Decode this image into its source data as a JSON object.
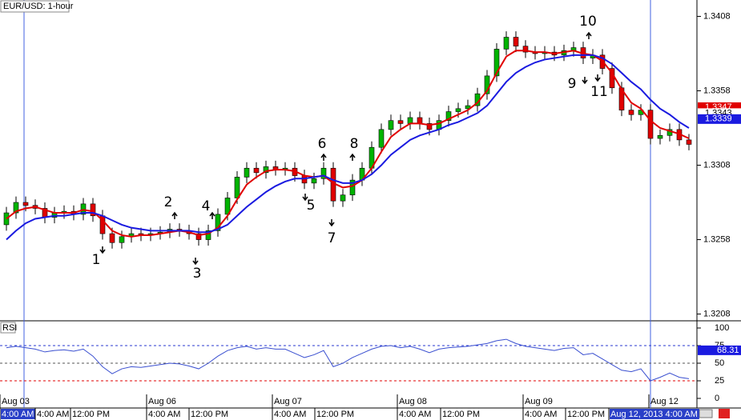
{
  "chart_data": [
    {
      "type": "candlestick",
      "title": "EUR/USD: 1-hour",
      "open": [
        1.3268,
        1.3276,
        1.3283,
        1.3281,
        1.3279,
        1.3273,
        1.3276,
        1.3277,
        1.3275,
        1.3282,
        1.3274,
        1.3262,
        1.3256,
        1.326,
        1.3262,
        1.3261,
        1.3262,
        1.3263,
        1.3265,
        1.3264,
        1.3262,
        1.3258,
        1.3264,
        1.3275,
        1.3286,
        1.33,
        1.3306,
        1.3303,
        1.3307,
        1.3305,
        1.3306,
        1.3301,
        1.3296,
        1.3299,
        1.3306,
        1.3284,
        1.3288,
        1.3298,
        1.3306,
        1.332,
        1.3332,
        1.3338,
        1.3336,
        1.334,
        1.3336,
        1.3332,
        1.3338,
        1.3344,
        1.3346,
        1.3348,
        1.3356,
        1.3368,
        1.3386,
        1.3394,
        1.3388,
        1.3384,
        1.3383,
        1.3384,
        1.3382,
        1.3385,
        1.3387,
        1.338,
        1.3382,
        1.3373,
        1.336,
        1.3345,
        1.3342,
        1.3345,
        1.3326,
        1.3328,
        1.3332,
        1.3325
      ],
      "high": [
        1.328,
        1.3287,
        1.3287,
        1.3285,
        1.3283,
        1.328,
        1.3281,
        1.3281,
        1.3286,
        1.3286,
        1.3278,
        1.3266,
        1.3264,
        1.3266,
        1.3266,
        1.3266,
        1.3267,
        1.3269,
        1.3269,
        1.3268,
        1.3266,
        1.3268,
        1.3279,
        1.329,
        1.3304,
        1.331,
        1.331,
        1.3311,
        1.3311,
        1.331,
        1.331,
        1.3305,
        1.3303,
        1.331,
        1.331,
        1.3292,
        1.3302,
        1.331,
        1.3324,
        1.3336,
        1.3342,
        1.3342,
        1.3344,
        1.3344,
        1.334,
        1.3342,
        1.3348,
        1.335,
        1.3352,
        1.336,
        1.3372,
        1.339,
        1.3398,
        1.3398,
        1.3392,
        1.3388,
        1.3388,
        1.3388,
        1.3389,
        1.3391,
        1.3391,
        1.3386,
        1.3386,
        1.3377,
        1.3364,
        1.3349,
        1.3349,
        1.3349,
        1.3332,
        1.3336,
        1.3336,
        1.3329
      ],
      "low": [
        1.3264,
        1.3272,
        1.3277,
        1.3275,
        1.3269,
        1.3269,
        1.3272,
        1.3271,
        1.3271,
        1.327,
        1.3258,
        1.3252,
        1.3252,
        1.3256,
        1.3257,
        1.3257,
        1.3258,
        1.3259,
        1.326,
        1.3258,
        1.3254,
        1.3254,
        1.326,
        1.3271,
        1.3282,
        1.3296,
        1.3299,
        1.3299,
        1.3301,
        1.3301,
        1.3297,
        1.3292,
        1.3292,
        1.3295,
        1.328,
        1.328,
        1.3284,
        1.3294,
        1.3302,
        1.3316,
        1.3328,
        1.3332,
        1.3332,
        1.3332,
        1.3328,
        1.3328,
        1.3334,
        1.334,
        1.3342,
        1.3344,
        1.3352,
        1.3364,
        1.3382,
        1.3384,
        1.338,
        1.3379,
        1.3379,
        1.3378,
        1.3378,
        1.3381,
        1.3376,
        1.3376,
        1.3369,
        1.3356,
        1.3341,
        1.3338,
        1.3338,
        1.3322,
        1.3322,
        1.3324,
        1.3321,
        1.3318
      ],
      "close": [
        1.3276,
        1.3283,
        1.3281,
        1.3279,
        1.3273,
        1.3276,
        1.3277,
        1.3275,
        1.3282,
        1.3274,
        1.3262,
        1.3256,
        1.326,
        1.3262,
        1.3261,
        1.3262,
        1.3263,
        1.3265,
        1.3264,
        1.3262,
        1.3258,
        1.3264,
        1.3275,
        1.3286,
        1.33,
        1.3306,
        1.3303,
        1.3307,
        1.3305,
        1.3306,
        1.3301,
        1.3296,
        1.3299,
        1.3306,
        1.3284,
        1.3288,
        1.3298,
        1.3306,
        1.332,
        1.3332,
        1.3338,
        1.3336,
        1.334,
        1.3336,
        1.3332,
        1.3338,
        1.3344,
        1.3346,
        1.3348,
        1.3356,
        1.3368,
        1.3386,
        1.3394,
        1.3388,
        1.3384,
        1.3383,
        1.3384,
        1.3382,
        1.3385,
        1.3387,
        1.338,
        1.3382,
        1.3373,
        1.336,
        1.3345,
        1.3342,
        1.3345,
        1.3326,
        1.3328,
        1.3332,
        1.3325,
        1.3322
      ],
      "up_color": "#00b400",
      "down_color": "#e00000",
      "series": [
        {
          "color": "#e00000",
          "values": [
            1.3272,
            1.3277,
            1.3279,
            1.328,
            1.3278,
            1.3276,
            1.3276,
            1.3276,
            1.3278,
            1.3277,
            1.3271,
            1.3264,
            1.3261,
            1.326,
            1.3261,
            1.3261,
            1.3262,
            1.3263,
            1.3264,
            1.3263,
            1.3261,
            1.3262,
            1.3266,
            1.3274,
            1.3285,
            1.3295,
            1.33,
            1.3304,
            1.3305,
            1.3305,
            1.3304,
            1.3301,
            1.33,
            1.3301,
            1.3296,
            1.3293,
            1.3294,
            1.3298,
            1.3306,
            1.3317,
            1.3327,
            1.3332,
            1.3336,
            1.3336,
            1.3335,
            1.3336,
            1.3339,
            1.3342,
            1.3345,
            1.335,
            1.3358,
            1.337,
            1.3381,
            1.3385,
            1.3385,
            1.3384,
            1.3384,
            1.3383,
            1.3384,
            1.3385,
            1.3383,
            1.3382,
            1.3378,
            1.337,
            1.3359,
            1.335,
            1.3346,
            1.3338,
            1.3333,
            1.3331,
            1.3329,
            1.3326
          ]
        },
        {
          "color": "#1a1ae0",
          "values": [
            1.3258,
            1.3264,
            1.3269,
            1.3272,
            1.3273,
            1.3274,
            1.3274,
            1.3275,
            1.3276,
            1.3276,
            1.3274,
            1.3271,
            1.3268,
            1.3266,
            1.3265,
            1.3264,
            1.3264,
            1.3264,
            1.3264,
            1.3264,
            1.3263,
            1.3263,
            1.3265,
            1.3268,
            1.3274,
            1.328,
            1.3285,
            1.329,
            1.3294,
            1.3297,
            1.3299,
            1.3299,
            1.33,
            1.3301,
            1.3298,
            1.3296,
            1.3296,
            1.3298,
            1.3302,
            1.3308,
            1.3315,
            1.332,
            1.3325,
            1.3328,
            1.333,
            1.3332,
            1.3335,
            1.3337,
            1.334,
            1.3343,
            1.3348,
            1.3356,
            1.3364,
            1.337,
            1.3374,
            1.3377,
            1.3379,
            1.338,
            1.3381,
            1.3382,
            1.3382,
            1.3382,
            1.338,
            1.3376,
            1.337,
            1.3364,
            1.3359,
            1.3352,
            1.3346,
            1.3342,
            1.3337,
            1.3333
          ]
        }
      ],
      "ylim": [
        1.3204,
        1.3419
      ],
      "yticks": [
        1.3408,
        1.3358,
        1.3308,
        1.3258,
        1.3208
      ],
      "price_tags": [
        {
          "value": 1.3347,
          "color": "#e00000"
        },
        {
          "value": 1.3343,
          "color": "#ffffff"
        },
        {
          "value": 1.3339,
          "color": "#1a1ae0"
        }
      ],
      "annotations": [
        "1",
        "2",
        "3",
        "4",
        "5",
        "6",
        "7",
        "8",
        "9",
        "10",
        "11"
      ]
    },
    {
      "type": "line",
      "title": "RSI",
      "series": [
        {
          "color": "#3a4fd0",
          "values": [
            72,
            74,
            72,
            70,
            66,
            68,
            69,
            67,
            70,
            60,
            45,
            35,
            42,
            45,
            44,
            46,
            48,
            50,
            49,
            46,
            42,
            50,
            60,
            68,
            72,
            74,
            70,
            72,
            70,
            70,
            64,
            58,
            62,
            68,
            45,
            50,
            58,
            64,
            70,
            74,
            75,
            72,
            74,
            70,
            65,
            70,
            72,
            73,
            74,
            76,
            78,
            82,
            84,
            78,
            74,
            72,
            70,
            68,
            71,
            72,
            62,
            64,
            56,
            48,
            40,
            38,
            42,
            25,
            30,
            36,
            30,
            28
          ]
        }
      ],
      "ylim": [
        0,
        100
      ],
      "yticks": [
        100,
        75,
        50,
        25,
        0
      ],
      "hlines": [
        75,
        50,
        25
      ],
      "hline_colors": [
        "#2a3ad0",
        "#555555",
        "#e00000"
      ],
      "price_tag": {
        "value": 68.31,
        "color": "#1a1ae0"
      },
      "date_labels": [
        "Aug 03",
        "Aug 06",
        "Aug 07",
        "Aug 08",
        "Aug 09",
        "Aug 12"
      ],
      "time_labels": [
        "4:00 AM",
        "4:00 AM",
        "12:00 PM",
        "4:00 AM",
        "12:00 PM",
        "4:00 AM",
        "12:00 PM",
        "4:00 AM",
        "12:00 PM",
        "4:00 AM",
        "12:00 PM",
        "Aug 12, 2013 4:00 AM"
      ]
    }
  ]
}
